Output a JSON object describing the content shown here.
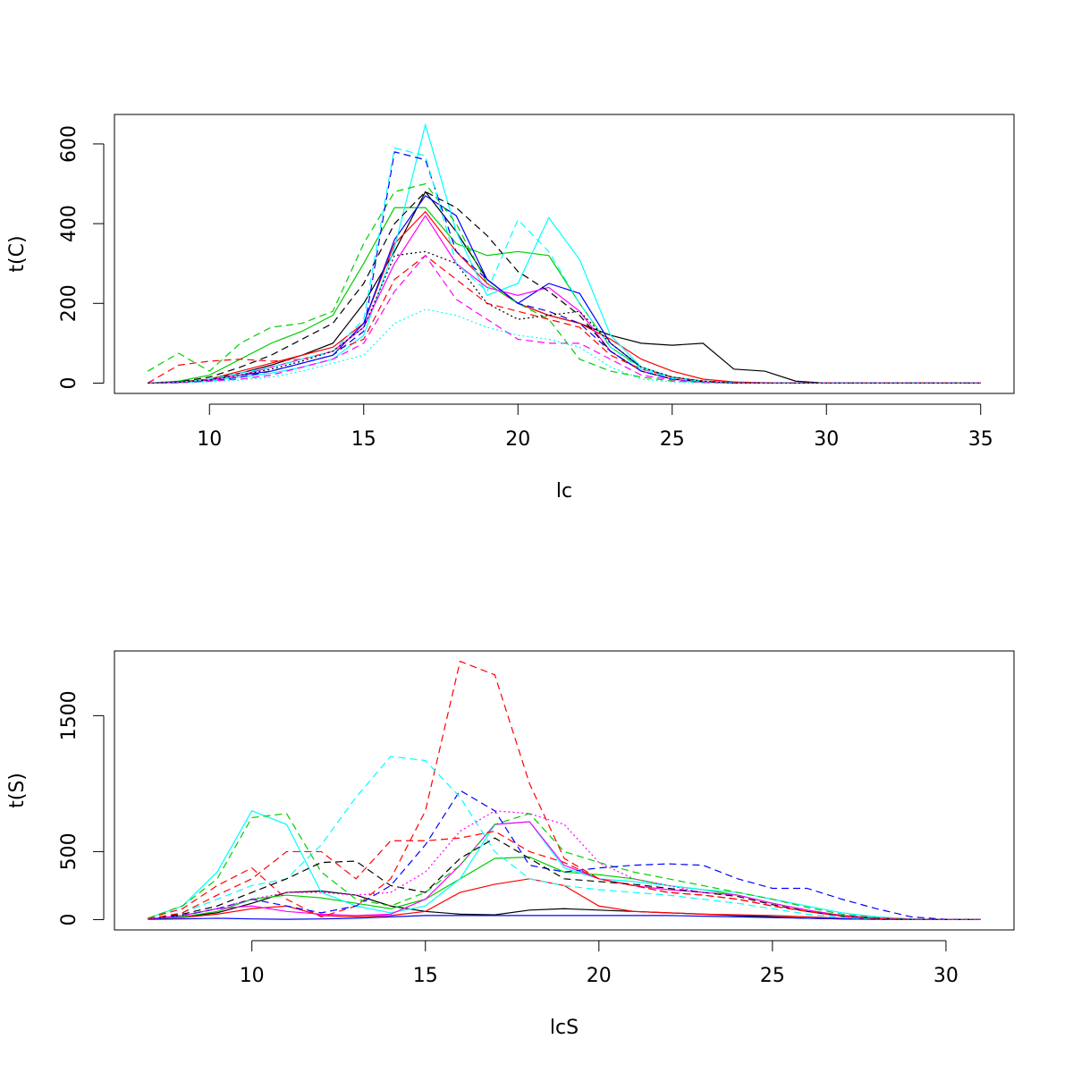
{
  "chart_data": [
    {
      "type": "line",
      "x_label": "lc",
      "y_label": "t(C)",
      "x": [
        8,
        9,
        10,
        11,
        12,
        13,
        14,
        15,
        16,
        17,
        18,
        19,
        20,
        21,
        22,
        23,
        24,
        25,
        26,
        27,
        28,
        29,
        30,
        31,
        32,
        33,
        34,
        35
      ],
      "xlim": [
        6.92,
        36.08
      ],
      "xticks": [
        10,
        15,
        20,
        25,
        30,
        35
      ],
      "ylim": [
        -25.9,
        673.9
      ],
      "yticks": [
        0,
        200,
        400,
        600
      ],
      "series": [
        {
          "color": "#000000",
          "dash": "solid",
          "values": [
            0,
            2,
            10,
            25,
            45,
            70,
            100,
            200,
            330,
            480,
            380,
            260,
            200,
            170,
            150,
            120,
            100,
            95,
            100,
            35,
            30,
            5,
            0,
            0,
            0,
            0,
            0,
            0
          ]
        },
        {
          "color": "#ff0000",
          "dash": "solid",
          "values": [
            0,
            3,
            10,
            30,
            50,
            70,
            90,
            150,
            350,
            430,
            330,
            250,
            200,
            170,
            150,
            110,
            60,
            30,
            10,
            3,
            1,
            0,
            0,
            0,
            0,
            0,
            0,
            0
          ]
        },
        {
          "color": "#00cd00",
          "dash": "solid",
          "values": [
            0,
            5,
            20,
            60,
            100,
            130,
            170,
            300,
            440,
            440,
            350,
            320,
            330,
            320,
            200,
            90,
            40,
            15,
            5,
            1,
            0,
            0,
            0,
            0,
            0,
            0,
            0,
            0
          ]
        },
        {
          "color": "#0000ff",
          "dash": "solid",
          "values": [
            0,
            2,
            8,
            20,
            30,
            50,
            70,
            150,
            360,
            470,
            420,
            260,
            200,
            250,
            225,
            100,
            40,
            15,
            5,
            1,
            0,
            0,
            0,
            0,
            0,
            0,
            0,
            0
          ]
        },
        {
          "color": "#00ffff",
          "dash": "solid",
          "values": [
            0,
            1,
            5,
            15,
            25,
            40,
            60,
            120,
            340,
            648,
            380,
            220,
            250,
            415,
            310,
            120,
            40,
            15,
            5,
            1,
            0,
            0,
            0,
            0,
            0,
            0,
            0,
            0
          ]
        },
        {
          "color": "#ff00ff",
          "dash": "solid",
          "values": [
            0,
            2,
            8,
            20,
            40,
            60,
            80,
            140,
            300,
            420,
            300,
            240,
            220,
            240,
            180,
            80,
            30,
            10,
            3,
            0,
            0,
            0,
            0,
            0,
            0,
            0,
            0,
            0
          ]
        },
        {
          "color": "#000000",
          "dash": "dashed",
          "values": [
            0,
            3,
            15,
            40,
            70,
            110,
            150,
            250,
            400,
            480,
            440,
            370,
            280,
            230,
            170,
            80,
            30,
            10,
            3,
            0,
            0,
            0,
            0,
            0,
            0,
            0,
            0,
            0
          ]
        },
        {
          "color": "#ff0000",
          "dash": "dashed",
          "values": [
            0,
            45,
            55,
            60,
            55,
            60,
            80,
            110,
            260,
            320,
            260,
            200,
            180,
            160,
            140,
            70,
            35,
            15,
            5,
            1,
            0,
            0,
            0,
            0,
            0,
            0,
            0,
            0
          ]
        },
        {
          "color": "#00cd00",
          "dash": "dashed",
          "values": [
            30,
            75,
            30,
            100,
            140,
            150,
            180,
            350,
            480,
            500,
            400,
            250,
            200,
            160,
            60,
            30,
            15,
            5,
            1,
            0,
            0,
            0,
            0,
            0,
            0,
            0,
            0,
            0
          ]
        },
        {
          "color": "#0000ff",
          "dash": "dashed",
          "values": [
            0,
            1,
            5,
            15,
            30,
            50,
            70,
            130,
            580,
            560,
            330,
            260,
            200,
            180,
            150,
            80,
            30,
            10,
            3,
            1,
            0,
            0,
            0,
            0,
            0,
            0,
            0,
            0
          ]
        },
        {
          "color": "#00ffff",
          "dash": "dashed",
          "values": [
            0,
            2,
            10,
            25,
            40,
            60,
            80,
            160,
            590,
            570,
            300,
            230,
            410,
            330,
            200,
            90,
            35,
            12,
            4,
            1,
            0,
            0,
            0,
            0,
            0,
            0,
            0,
            0
          ]
        },
        {
          "color": "#ff00ff",
          "dash": "dashed",
          "values": [
            0,
            1,
            5,
            10,
            20,
            40,
            60,
            100,
            230,
            320,
            210,
            160,
            110,
            100,
            100,
            60,
            20,
            8,
            2,
            0,
            0,
            0,
            0,
            0,
            0,
            0,
            0,
            0
          ]
        },
        {
          "color": "#00ffff",
          "dash": "dotted",
          "values": [
            0,
            1,
            3,
            8,
            15,
            30,
            50,
            70,
            150,
            185,
            170,
            140,
            120,
            110,
            90,
            40,
            10,
            3,
            1,
            0,
            0,
            0,
            0,
            0,
            0,
            0,
            0,
            0
          ]
        },
        {
          "color": "#000000",
          "dash": "dotted",
          "values": [
            0,
            2,
            8,
            20,
            35,
            55,
            80,
            140,
            320,
            330,
            300,
            200,
            160,
            170,
            180,
            100,
            40,
            15,
            5,
            0,
            0,
            0,
            0,
            0,
            0,
            0,
            0,
            0
          ]
        }
      ]
    },
    {
      "type": "line",
      "x_label": "lcS",
      "y_label": "t(S)",
      "x": [
        7,
        8,
        9,
        10,
        11,
        12,
        13,
        14,
        15,
        16,
        17,
        18,
        19,
        20,
        21,
        22,
        23,
        24,
        25,
        26,
        27,
        28,
        29,
        30,
        31
      ],
      "xlim": [
        6.04,
        31.96
      ],
      "xticks": [
        10,
        15,
        20,
        25,
        30
      ],
      "ylim": [
        -76,
        1976
      ],
      "yticks": [
        0,
        500,
        1500
      ],
      "series": [
        {
          "color": "#000000",
          "dash": "solid",
          "values": [
            5,
            20,
            50,
            120,
            200,
            210,
            180,
            100,
            60,
            40,
            35,
            70,
            80,
            70,
            60,
            50,
            40,
            30,
            20,
            10,
            5,
            2,
            0,
            0,
            0
          ]
        },
        {
          "color": "#ff0000",
          "dash": "solid",
          "values": [
            5,
            15,
            40,
            80,
            100,
            30,
            20,
            30,
            60,
            200,
            260,
            300,
            250,
            100,
            60,
            50,
            40,
            35,
            30,
            20,
            10,
            5,
            2,
            0,
            0
          ]
        },
        {
          "color": "#00cd00",
          "dash": "solid",
          "values": [
            5,
            20,
            60,
            150,
            180,
            160,
            120,
            80,
            150,
            300,
            450,
            460,
            350,
            330,
            300,
            250,
            220,
            180,
            120,
            70,
            30,
            10,
            2,
            0,
            0
          ]
        },
        {
          "color": "#0000ff",
          "dash": "solid",
          "values": [
            2,
            5,
            10,
            5,
            2,
            5,
            10,
            20,
            30,
            30,
            30,
            30,
            30,
            30,
            30,
            30,
            25,
            20,
            15,
            10,
            5,
            3,
            1,
            0,
            0
          ]
        },
        {
          "color": "#00ffff",
          "dash": "solid",
          "values": [
            10,
            100,
            350,
            800,
            700,
            200,
            100,
            50,
            100,
            300,
            700,
            720,
            380,
            300,
            280,
            250,
            220,
            200,
            150,
            100,
            50,
            20,
            5,
            1,
            0
          ]
        },
        {
          "color": "#ff00ff",
          "dash": "solid",
          "values": [
            5,
            30,
            80,
            100,
            60,
            40,
            30,
            40,
            150,
            400,
            700,
            720,
            400,
            300,
            250,
            220,
            200,
            180,
            120,
            70,
            30,
            10,
            2,
            0,
            0
          ]
        },
        {
          "color": "#ff0000",
          "dash": "dashed",
          "values": [
            10,
            80,
            250,
            380,
            150,
            20,
            100,
            300,
            800,
            1900,
            1800,
            1000,
            450,
            300,
            250,
            200,
            180,
            150,
            100,
            60,
            30,
            10,
            2,
            0,
            0
          ]
        },
        {
          "color": "#00cd00",
          "dash": "dashed",
          "values": [
            10,
            100,
            300,
            750,
            780,
            350,
            150,
            100,
            200,
            400,
            700,
            780,
            500,
            420,
            350,
            300,
            250,
            200,
            150,
            90,
            40,
            15,
            3,
            0,
            0
          ]
        },
        {
          "color": "#0000ff",
          "dash": "dashed",
          "values": [
            5,
            30,
            80,
            150,
            100,
            50,
            100,
            250,
            550,
            950,
            800,
            400,
            350,
            380,
            400,
            410,
            400,
            300,
            230,
            230,
            150,
            80,
            20,
            2,
            0
          ]
        },
        {
          "color": "#00ffff",
          "dash": "dashed",
          "values": [
            5,
            50,
            150,
            250,
            300,
            550,
            900,
            1200,
            1170,
            900,
            500,
            300,
            250,
            220,
            200,
            180,
            150,
            120,
            80,
            40,
            15,
            5,
            1,
            0,
            0
          ]
        },
        {
          "color": "#000000",
          "dash": "dashed",
          "values": [
            5,
            40,
            100,
            200,
            300,
            420,
            430,
            250,
            200,
            450,
            600,
            450,
            300,
            280,
            260,
            230,
            200,
            170,
            110,
            60,
            25,
            8,
            2,
            0,
            0
          ]
        },
        {
          "color": "#ff0000",
          "dash": "dashed",
          "values": [
            5,
            50,
            180,
            300,
            500,
            500,
            300,
            580,
            580,
            600,
            650,
            500,
            420,
            300,
            250,
            200,
            180,
            150,
            100,
            60,
            25,
            8,
            2,
            0,
            0
          ]
        },
        {
          "color": "#ff00ff",
          "dash": "dotted",
          "values": [
            5,
            30,
            80,
            150,
            200,
            200,
            180,
            200,
            350,
            650,
            800,
            780,
            700,
            420,
            300,
            250,
            200,
            180,
            120,
            70,
            30,
            10,
            2,
            0,
            0
          ]
        }
      ]
    }
  ]
}
